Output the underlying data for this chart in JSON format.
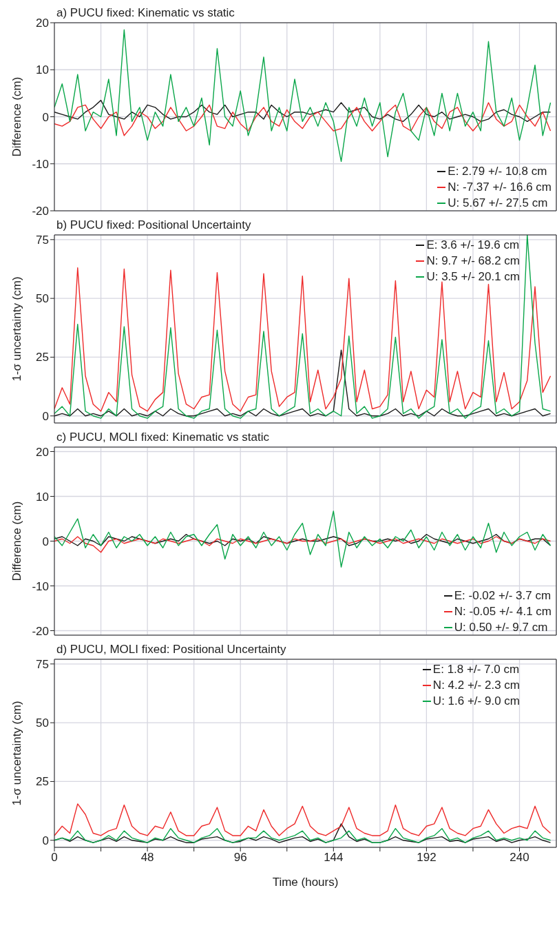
{
  "chart_data": [
    {
      "type": "line",
      "title": "a) PUCU fixed: Kinematic vs static",
      "ylabel": "Difference (cm)",
      "xlim": [
        0,
        259
      ],
      "ylim": [
        -20,
        20
      ],
      "xticks": [
        0,
        {
          "value": 24,
          "label": null
        },
        48,
        {
          "value": 72,
          "label": null
        },
        96,
        {
          "value": 120,
          "label": null
        },
        144,
        {
          "value": 168,
          "label": null
        },
        192,
        {
          "value": 216,
          "label": null
        },
        240
      ],
      "yticks": [
        -20,
        -10,
        0,
        10,
        20
      ],
      "tick_labels": "y",
      "grid": true,
      "legend": "bottom right",
      "x": [
        0,
        4,
        8,
        12,
        16,
        20,
        24,
        28,
        32,
        36,
        40,
        44,
        48,
        52,
        56,
        60,
        64,
        68,
        72,
        76,
        80,
        84,
        88,
        92,
        96,
        100,
        104,
        108,
        112,
        116,
        120,
        124,
        128,
        132,
        136,
        140,
        144,
        148,
        152,
        156,
        160,
        164,
        168,
        172,
        176,
        180,
        184,
        188,
        192,
        196,
        200,
        204,
        208,
        212,
        216,
        220,
        224,
        228,
        232,
        236,
        240,
        244,
        248,
        252,
        256
      ],
      "series": [
        {
          "name": "E:  2.79 +/- 10.8 cm",
          "color": "#1a1a1a",
          "values": [
            1,
            0.5,
            0,
            -0.5,
            1,
            2,
            3.5,
            0.5,
            0,
            -0.5,
            1,
            0,
            2.5,
            2,
            0.5,
            -0.5,
            0,
            0,
            1,
            2.5,
            1,
            0.5,
            2.5,
            0,
            0.5,
            1,
            1,
            -0.5,
            2.5,
            1,
            0,
            1,
            1,
            0.5,
            1,
            1.5,
            1,
            3,
            1,
            1.5,
            2,
            0,
            -0.5,
            0.5,
            -0.5,
            -1,
            0.5,
            2.5,
            0.5,
            0,
            1,
            -0.5,
            0,
            0.5,
            0,
            -1,
            -0.5,
            1,
            1.5,
            0.5,
            0,
            -1,
            0,
            1,
            1
          ]
        },
        {
          "name": "N: -7.37 +/- 16.6 cm",
          "color": "#ee2a2a",
          "values": [
            -1.5,
            -2,
            -1,
            2,
            2.5,
            -0.5,
            -2.5,
            0,
            1,
            -4,
            -2,
            1,
            0,
            -2.5,
            -1,
            2,
            -0.5,
            -3,
            -2,
            0,
            2.5,
            -2,
            -2.5,
            1,
            -1.5,
            -3,
            0,
            2,
            -1,
            -2,
            1.5,
            -1,
            -2.5,
            0,
            1,
            -1,
            -3,
            -2.5,
            0,
            2,
            -1,
            -3,
            -1,
            1,
            2.5,
            -2,
            -3,
            0,
            2,
            -1,
            -2.5,
            1,
            2,
            -1,
            -3,
            -1,
            3,
            -0.5,
            -2,
            -1,
            2.5,
            0,
            -2,
            1,
            -3
          ]
        },
        {
          "name": "U:  5.67 +/- 27.5 cm",
          "color": "#0aa64a",
          "values": [
            2,
            7,
            -1,
            9,
            -3,
            1,
            0,
            8,
            -4,
            18.5,
            -1,
            2,
            -5,
            1,
            -2,
            9,
            -1,
            2,
            -2,
            4,
            -6,
            14.5,
            0,
            -2,
            5.5,
            -4,
            1,
            12.7,
            -3,
            2,
            -3,
            8,
            -1,
            2,
            -2,
            3,
            -1,
            -9.5,
            2,
            -2,
            4,
            -2,
            3,
            -8.5,
            1,
            5,
            -3,
            -5,
            2,
            -4,
            5,
            -3,
            5,
            -2,
            1,
            -3,
            16,
            1,
            -2,
            4,
            -5,
            2,
            11,
            -4,
            3
          ]
        }
      ]
    },
    {
      "type": "line",
      "title": "b) PUCU fixed: Positional Uncertainty",
      "ylabel": "1-σ uncertainty (cm)",
      "xlim": [
        0,
        259
      ],
      "ylim": [
        -3,
        77
      ],
      "xticks": [
        0,
        {
          "value": 24,
          "label": null
        },
        48,
        {
          "value": 72,
          "label": null
        },
        96,
        {
          "value": 120,
          "label": null
        },
        144,
        {
          "value": 168,
          "label": null
        },
        192,
        {
          "value": 216,
          "label": null
        },
        240
      ],
      "yticks": [
        0,
        25,
        50,
        75
      ],
      "tick_labels": "y",
      "grid": true,
      "legend": "top right",
      "x": [
        0,
        4,
        8,
        12,
        16,
        20,
        24,
        28,
        32,
        36,
        40,
        44,
        48,
        52,
        56,
        60,
        64,
        68,
        72,
        76,
        80,
        84,
        88,
        92,
        96,
        100,
        104,
        108,
        112,
        116,
        120,
        124,
        128,
        132,
        136,
        140,
        144,
        148,
        152,
        156,
        160,
        164,
        168,
        172,
        176,
        180,
        184,
        188,
        192,
        196,
        200,
        204,
        208,
        212,
        216,
        220,
        224,
        228,
        232,
        236,
        240,
        244,
        248,
        252,
        256
      ],
      "series": [
        {
          "name": "E: 3.6 +/- 19.6 cm",
          "color": "#1a1a1a",
          "values": [
            0,
            1,
            0,
            3,
            0,
            1,
            0,
            2,
            0,
            3,
            0,
            1,
            0,
            2,
            0,
            3,
            1,
            0,
            0,
            1,
            2,
            3,
            0,
            1,
            0,
            2,
            0,
            3,
            1,
            0,
            1,
            2,
            3,
            0,
            1,
            0,
            2,
            28,
            3,
            0,
            1,
            0,
            0,
            1,
            3,
            0,
            1,
            0,
            2,
            0,
            3,
            1,
            0,
            0,
            1,
            2,
            3,
            0,
            1,
            0,
            1,
            2,
            3,
            0,
            1
          ]
        },
        {
          "name": "N: 9.7 +/- 68.2 cm",
          "color": "#ee2a2a",
          "values": [
            3,
            12,
            5,
            63,
            17,
            5,
            2,
            10,
            6,
            62.5,
            17.5,
            4,
            2,
            7,
            10,
            62,
            18,
            5,
            3,
            8,
            9,
            61,
            19,
            5,
            2,
            8,
            9,
            60.5,
            19,
            4,
            8,
            10,
            59.5,
            6,
            19.5,
            3,
            8,
            16,
            58.5,
            6,
            19.5,
            3,
            4,
            9,
            57.5,
            6,
            19,
            3,
            11,
            8,
            57,
            6,
            19,
            3,
            10,
            8,
            56,
            6,
            18.5,
            3,
            6,
            15,
            55,
            10,
            17
          ]
        },
        {
          "name": "U: 3.5 +/- 20.1 cm",
          "color": "#0aa64a",
          "values": [
            1,
            4,
            0,
            39,
            2,
            0,
            -1,
            3,
            0,
            38,
            3,
            0,
            -1,
            2,
            4,
            37.5,
            3,
            0,
            -1,
            2,
            3,
            36.5,
            3,
            0,
            -1,
            2,
            3,
            36,
            3,
            0,
            2,
            4,
            35,
            1,
            3,
            0,
            2,
            0,
            34,
            1,
            4,
            -1,
            0,
            3,
            33.5,
            1,
            3,
            -1,
            2,
            4,
            32.5,
            1,
            3,
            -1,
            2,
            4,
            32,
            1,
            3,
            0,
            2,
            77,
            31,
            3,
            2
          ]
        }
      ]
    },
    {
      "type": "line",
      "title": "c) PUCU, MOLI fixed: Kinematic vs static",
      "ylabel": "Difference (cm)",
      "xlim": [
        0,
        259
      ],
      "ylim": [
        -21,
        21
      ],
      "xticks": [
        0,
        {
          "value": 24,
          "label": null
        },
        48,
        {
          "value": 72,
          "label": null
        },
        96,
        {
          "value": 120,
          "label": null
        },
        144,
        {
          "value": 168,
          "label": null
        },
        192,
        {
          "value": 216,
          "label": null
        },
        240
      ],
      "yticks": [
        -20,
        -10,
        0,
        10,
        20
      ],
      "tick_labels": "y",
      "grid": true,
      "legend": "bottom right",
      "x": [
        0,
        4,
        8,
        12,
        16,
        20,
        24,
        28,
        32,
        36,
        40,
        44,
        48,
        52,
        56,
        60,
        64,
        68,
        72,
        76,
        80,
        84,
        88,
        92,
        96,
        100,
        104,
        108,
        112,
        116,
        120,
        124,
        128,
        132,
        136,
        140,
        144,
        148,
        152,
        156,
        160,
        164,
        168,
        172,
        176,
        180,
        184,
        188,
        192,
        196,
        200,
        204,
        208,
        212,
        216,
        220,
        224,
        228,
        232,
        236,
        240,
        244,
        248,
        252,
        256
      ],
      "series": [
        {
          "name": "E: -0.02 +/- 3.7 cm",
          "color": "#1a1a1a",
          "values": [
            0.5,
            1,
            0,
            -1,
            0.5,
            0,
            -1,
            1,
            0.5,
            0,
            1,
            0.5,
            0,
            -0.5,
            0,
            0.5,
            0,
            1.5,
            0.5,
            0,
            -0.5,
            0,
            -1,
            0.5,
            0,
            0.5,
            -0.5,
            1,
            0.5,
            0,
            -0.5,
            0,
            0.5,
            0,
            0,
            0.5,
            1,
            0.5,
            -1,
            -0.5,
            0.5,
            0,
            0,
            0.5,
            0,
            0.5,
            -0.5,
            0,
            1.5,
            0.5,
            0,
            -0.5,
            0.5,
            0,
            -0.5,
            0,
            0.5,
            1.5,
            0,
            -0.5,
            0.5,
            0,
            0.5,
            0.5,
            -1
          ]
        },
        {
          "name": "N: -0.05 +/- 4.1 cm",
          "color": "#ee2a2a",
          "values": [
            0,
            0.5,
            -0.5,
            1,
            -0.5,
            -1,
            -2.5,
            0,
            0.5,
            -0.5,
            0,
            0.5,
            0,
            -0.5,
            0.5,
            0,
            -0.5,
            0,
            0.5,
            0,
            -1,
            0.5,
            0,
            -0.5,
            0.5,
            0,
            -0.5,
            0,
            0.5,
            0,
            -0.5,
            0.5,
            0,
            0,
            0.5,
            -0.5,
            0,
            0.5,
            -0.5,
            0,
            0.5,
            0,
            -0.5,
            0,
            0.5,
            -0.5,
            0,
            0.5,
            0,
            -0.5,
            0.5,
            0,
            -0.5,
            0,
            0.5,
            -0.5,
            0,
            1,
            0,
            -0.5,
            0.5,
            0,
            -0.5,
            0.5,
            0
          ]
        },
        {
          "name": "U:  0.50 +/- 9.7 cm",
          "color": "#0aa64a",
          "values": [
            1,
            -1,
            2,
            5,
            -1.5,
            1.5,
            -1,
            2,
            -1.5,
            1,
            0,
            1.5,
            -1,
            1,
            -1.5,
            2,
            -1,
            1,
            1.5,
            -1,
            1.5,
            3.7,
            -4,
            1.5,
            -1,
            1,
            -1.5,
            2,
            -1,
            1,
            -2,
            1.5,
            4,
            -3,
            1.5,
            -1,
            6.7,
            -5.8,
            2,
            -1.5,
            1,
            -1,
            0.5,
            -1.5,
            1,
            0,
            2.5,
            -1.5,
            1,
            -2,
            2,
            -1,
            1.5,
            -2,
            1,
            -1.5,
            4,
            -2.5,
            2,
            -1,
            1,
            2,
            -2,
            1.5,
            -1
          ]
        }
      ]
    },
    {
      "type": "line",
      "title": "d) PUCU, MOLI fixed: Positional Uncertainty",
      "ylabel": "1-σ uncertainty (cm)",
      "xlabel": "Time (hours)",
      "xlim": [
        0,
        259
      ],
      "ylim": [
        -3,
        77
      ],
      "xticks": [
        0,
        {
          "value": 24,
          "label": null
        },
        48,
        {
          "value": 72,
          "label": null
        },
        96,
        {
          "value": 120,
          "label": null
        },
        144,
        {
          "value": 168,
          "label": null
        },
        192,
        {
          "value": 216,
          "label": null
        },
        240
      ],
      "yticks": [
        0,
        25,
        50,
        75
      ],
      "grid": true,
      "legend": "top right",
      "x": [
        0,
        4,
        8,
        12,
        16,
        20,
        24,
        28,
        32,
        36,
        40,
        44,
        48,
        52,
        56,
        60,
        64,
        68,
        72,
        76,
        80,
        84,
        88,
        92,
        96,
        100,
        104,
        108,
        112,
        116,
        120,
        124,
        128,
        132,
        136,
        140,
        144,
        148,
        152,
        156,
        160,
        164,
        168,
        172,
        176,
        180,
        184,
        188,
        192,
        196,
        200,
        204,
        208,
        212,
        216,
        220,
        224,
        228,
        232,
        236,
        240,
        244,
        248,
        252,
        256
      ],
      "series": [
        {
          "name": "E: 1.8 +/- 7.0 cm",
          "color": "#1a1a1a",
          "values": [
            0,
            1,
            -0.5,
            1.5,
            0,
            -1,
            0,
            1,
            -0.5,
            1.5,
            0,
            -0.5,
            -1,
            0.5,
            0,
            1.5,
            0,
            -1,
            -1,
            0.5,
            1,
            1.5,
            0,
            -1,
            -0.5,
            1,
            0,
            1.5,
            0.5,
            -1,
            0,
            1,
            1.5,
            -0.5,
            0.5,
            -1,
            0,
            7,
            1.5,
            -0.5,
            0.5,
            -1,
            -1,
            0,
            1.5,
            0,
            -0.5,
            -1,
            0.5,
            1,
            1.5,
            -0.5,
            0,
            -1,
            0.5,
            1,
            1.5,
            -0.5,
            0.5,
            -1,
            0,
            0.5,
            1.5,
            0,
            -1
          ]
        },
        {
          "name": "N: 4.2 +/- 2.3 cm",
          "color": "#ee2a2a",
          "values": [
            2,
            6,
            3,
            15.5,
            11,
            3,
            2,
            4,
            5,
            15,
            6,
            3,
            2,
            6,
            5,
            12,
            4,
            2,
            2,
            6,
            7,
            14,
            4,
            2,
            2,
            6,
            4,
            13,
            6,
            2,
            5,
            7,
            14.5,
            6,
            3,
            2,
            4,
            6,
            14,
            5,
            3,
            2,
            2,
            4,
            15,
            5,
            3,
            2,
            6,
            7,
            14,
            5,
            3,
            2,
            5,
            6,
            13,
            7,
            3,
            5,
            6,
            5,
            14.5,
            6,
            3
          ]
        },
        {
          "name": "U: 1.6 +/- 9.0 cm",
          "color": "#0aa64a",
          "values": [
            0,
            1,
            0,
            4,
            0,
            -1,
            0,
            2,
            0,
            4,
            1,
            0,
            -1,
            1,
            0,
            5,
            1,
            0,
            -1,
            1,
            2,
            5,
            0,
            -1,
            0,
            1,
            1,
            4,
            1,
            0,
            1,
            2,
            4,
            0,
            1,
            -1,
            0,
            1,
            4,
            0,
            1,
            -1,
            -1,
            0,
            5,
            1,
            0,
            -1,
            1,
            2,
            5,
            0,
            1,
            -1,
            1,
            2,
            4,
            0,
            1,
            0,
            1,
            0,
            4,
            1,
            0
          ]
        }
      ]
    }
  ]
}
